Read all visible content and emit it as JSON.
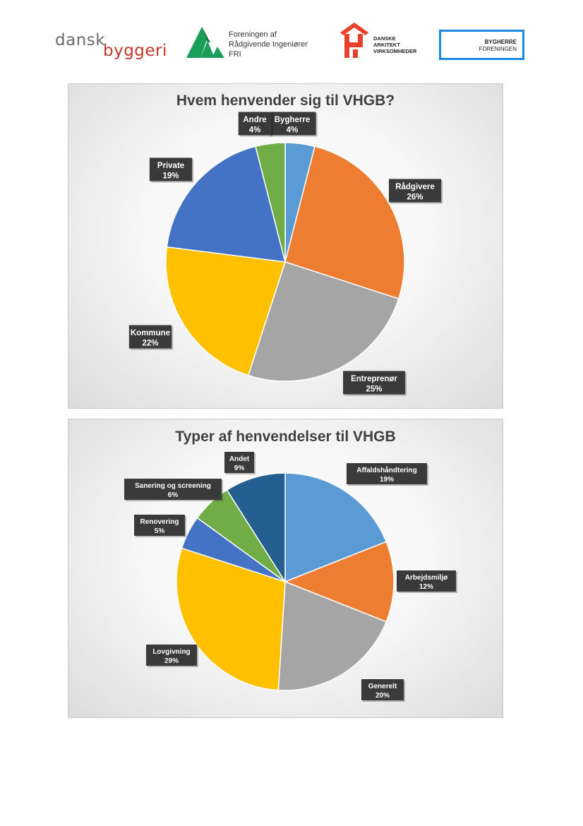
{
  "logos": {
    "dansk_byggeri": {
      "line1": "dansk",
      "line2": "byggeri"
    },
    "fri": {
      "line1": "Foreningen af",
      "line2": "Rådgivende Ingeniører",
      "line3": "FRI"
    },
    "dav": {
      "line1": "DANSKE",
      "line2": "ARKITEKT",
      "line3": "VIRKSOMHEDER"
    },
    "bygherre": {
      "line1": "BYGHERRE",
      "line2": "FORENINGEN"
    }
  },
  "colors": {
    "blue": "#4472C4",
    "orange": "#ED7D31",
    "gray": "#A5A5A5",
    "yellow": "#FFC000",
    "light_blue": "#5B9BD5",
    "green": "#70AD47",
    "dark_blue": "#255E91",
    "label_bg": "#3a3a3a"
  },
  "chart_data": [
    {
      "type": "pie",
      "title": "Hvem henvender sig til VHGB?",
      "categories": [
        "Bygherre",
        "Rådgivere",
        "Entreprenør",
        "Kommune",
        "Private",
        "Andre"
      ],
      "values": [
        4,
        26,
        25,
        22,
        19,
        4
      ],
      "labels": [
        "4%",
        "26%",
        "25%",
        "22%",
        "19%",
        "4%"
      ],
      "colors": [
        "#5B9BD5",
        "#ED7D31",
        "#A5A5A5",
        "#FFC000",
        "#4472C4",
        "#70AD47"
      ]
    },
    {
      "type": "pie",
      "title": "Typer af henvendelser til VHGB",
      "categories": [
        "Affaldshåndtering",
        "Arbejdsmiljø",
        "Generelt",
        "Lovgivning",
        "Renovering",
        "Sanering og screening",
        "Andet"
      ],
      "values": [
        19,
        12,
        20,
        29,
        5,
        6,
        9
      ],
      "labels": [
        "19%",
        "12%",
        "20%",
        "29%",
        "5%",
        "6%",
        "9%"
      ],
      "colors": [
        "#5B9BD5",
        "#ED7D31",
        "#A5A5A5",
        "#FFC000",
        "#4472C4",
        "#70AD47",
        "#255E91"
      ]
    }
  ]
}
